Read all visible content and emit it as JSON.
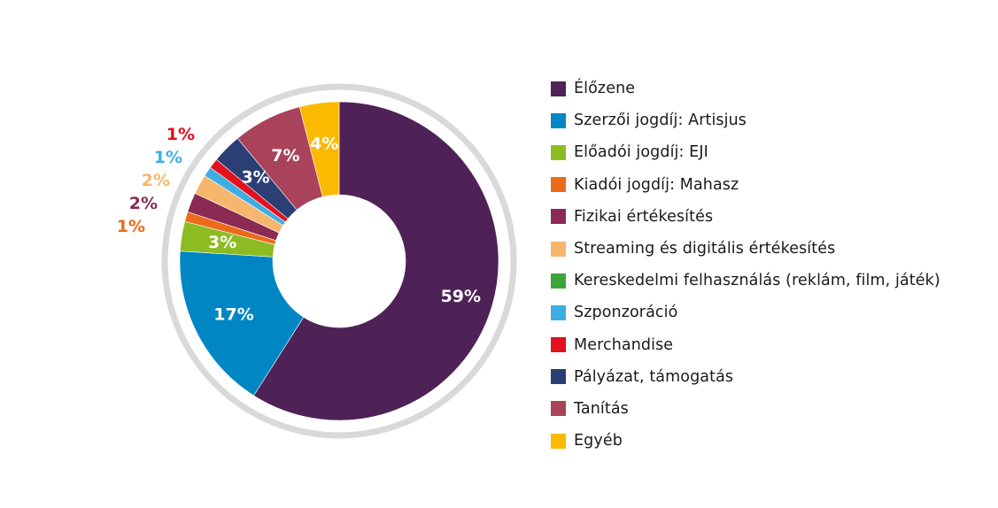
{
  "chart_data": {
    "type": "pie",
    "categories": [
      "Élőzene",
      "Szerzői jogdíj: Artisjus",
      "Előadói jogdíj: EJI",
      "Kiadói jogdíj: Mahasz",
      "Fizikai értékesítés",
      "Streaming és digitális értékesítés",
      "Kereskedelmi felhasználás (reklám, film, játék)",
      "Szponzoráció",
      "Merchandise",
      "Pályázat, támogatás",
      "Tanítás",
      "Egyéb"
    ],
    "values": [
      59,
      17,
      3,
      1,
      2,
      2,
      0,
      1,
      1,
      3,
      7,
      4
    ],
    "labels": [
      "59%",
      "17%",
      "3%",
      "1%",
      "2%",
      "2%",
      "",
      "1%",
      "1%",
      "3%",
      "7%",
      "4%"
    ],
    "colors": [
      "#4e2257",
      "#0086c3",
      "#8cbc22",
      "#ec6b1b",
      "#8b2a52",
      "#f6b66e",
      "#3ba43a",
      "#3eaee2",
      "#e3101e",
      "#2b3f75",
      "#a9435b",
      "#fbba00"
    ],
    "legend_position": "right"
  }
}
